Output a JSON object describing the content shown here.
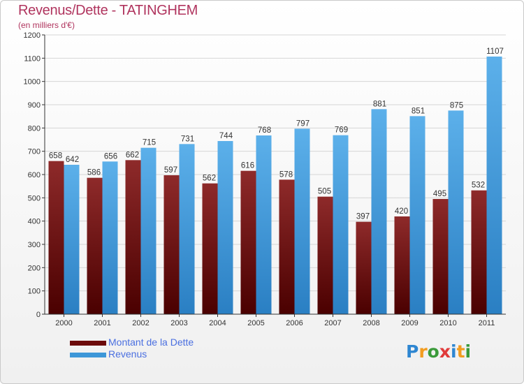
{
  "header": {
    "title": "Revenus/Dette - TATINGHEM",
    "subtitle": "(en milliers d'€)"
  },
  "chart_data": {
    "type": "bar",
    "title": "Revenus/Dette - TATINGHEM",
    "subtitle": "(en milliers d'€)",
    "xlabel": "",
    "ylabel": "",
    "ylim": [
      0,
      1200
    ],
    "yticks": [
      0,
      100,
      200,
      300,
      400,
      500,
      600,
      700,
      800,
      900,
      1000,
      1100,
      1200
    ],
    "grid": true,
    "legend_position": "bottom-left",
    "categories": [
      "2000",
      "2001",
      "2002",
      "2003",
      "2004",
      "2005",
      "2006",
      "2007",
      "2008",
      "2009",
      "2010",
      "2011"
    ],
    "series": [
      {
        "name": "Montant de la Dette",
        "color": "#7a1a1a",
        "values": [
          658,
          586,
          662,
          597,
          562,
          616,
          578,
          505,
          397,
          420,
          495,
          532
        ]
      },
      {
        "name": "Revenus",
        "color": "#3d97d8",
        "values": [
          642,
          656,
          715,
          731,
          744,
          768,
          797,
          769,
          881,
          851,
          875,
          1107
        ]
      }
    ]
  },
  "legend": {
    "items": [
      {
        "label": "Montant de la Dette",
        "color": "#6b0a0a"
      },
      {
        "label": "Revenus",
        "color": "#3d97d8"
      }
    ]
  },
  "logo": {
    "letters": [
      "P",
      "r",
      "o",
      "x",
      "i",
      "t",
      "i"
    ],
    "colors": [
      "#2e86d1",
      "#f29c1f",
      "#3a9a3a",
      "#e03a3a",
      "#2e86d1",
      "#f29c1f",
      "#3a9a3a"
    ]
  }
}
